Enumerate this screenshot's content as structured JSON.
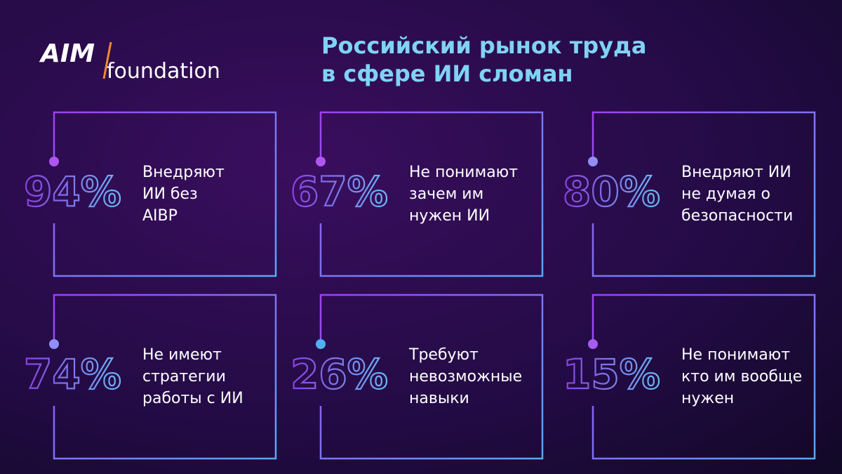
{
  "logo": {
    "brand": "AIM",
    "sub": "foundation"
  },
  "title": {
    "lines": [
      "Российский рынок труда",
      "в сфере ИИ сломан"
    ]
  },
  "cards": [
    {
      "value": "94%",
      "lines": [
        "Внедряют",
        "ИИ без",
        "AIBP"
      ]
    },
    {
      "value": "67%",
      "lines": [
        "Не понимают",
        "зачем им",
        "нужен ИИ"
      ]
    },
    {
      "value": "80%",
      "lines": [
        "Внедряют ИИ",
        "не думая о",
        "безопасности"
      ]
    },
    {
      "value": "74%",
      "lines": [
        "Не имеют",
        "стратегии",
        "работы с ИИ"
      ]
    },
    {
      "value": "26%",
      "lines": [
        "Требуют",
        "невозможные",
        "навыки"
      ]
    },
    {
      "value": "15%",
      "lines": [
        "Не понимают",
        "кто им вообще",
        "нужен"
      ]
    }
  ]
}
